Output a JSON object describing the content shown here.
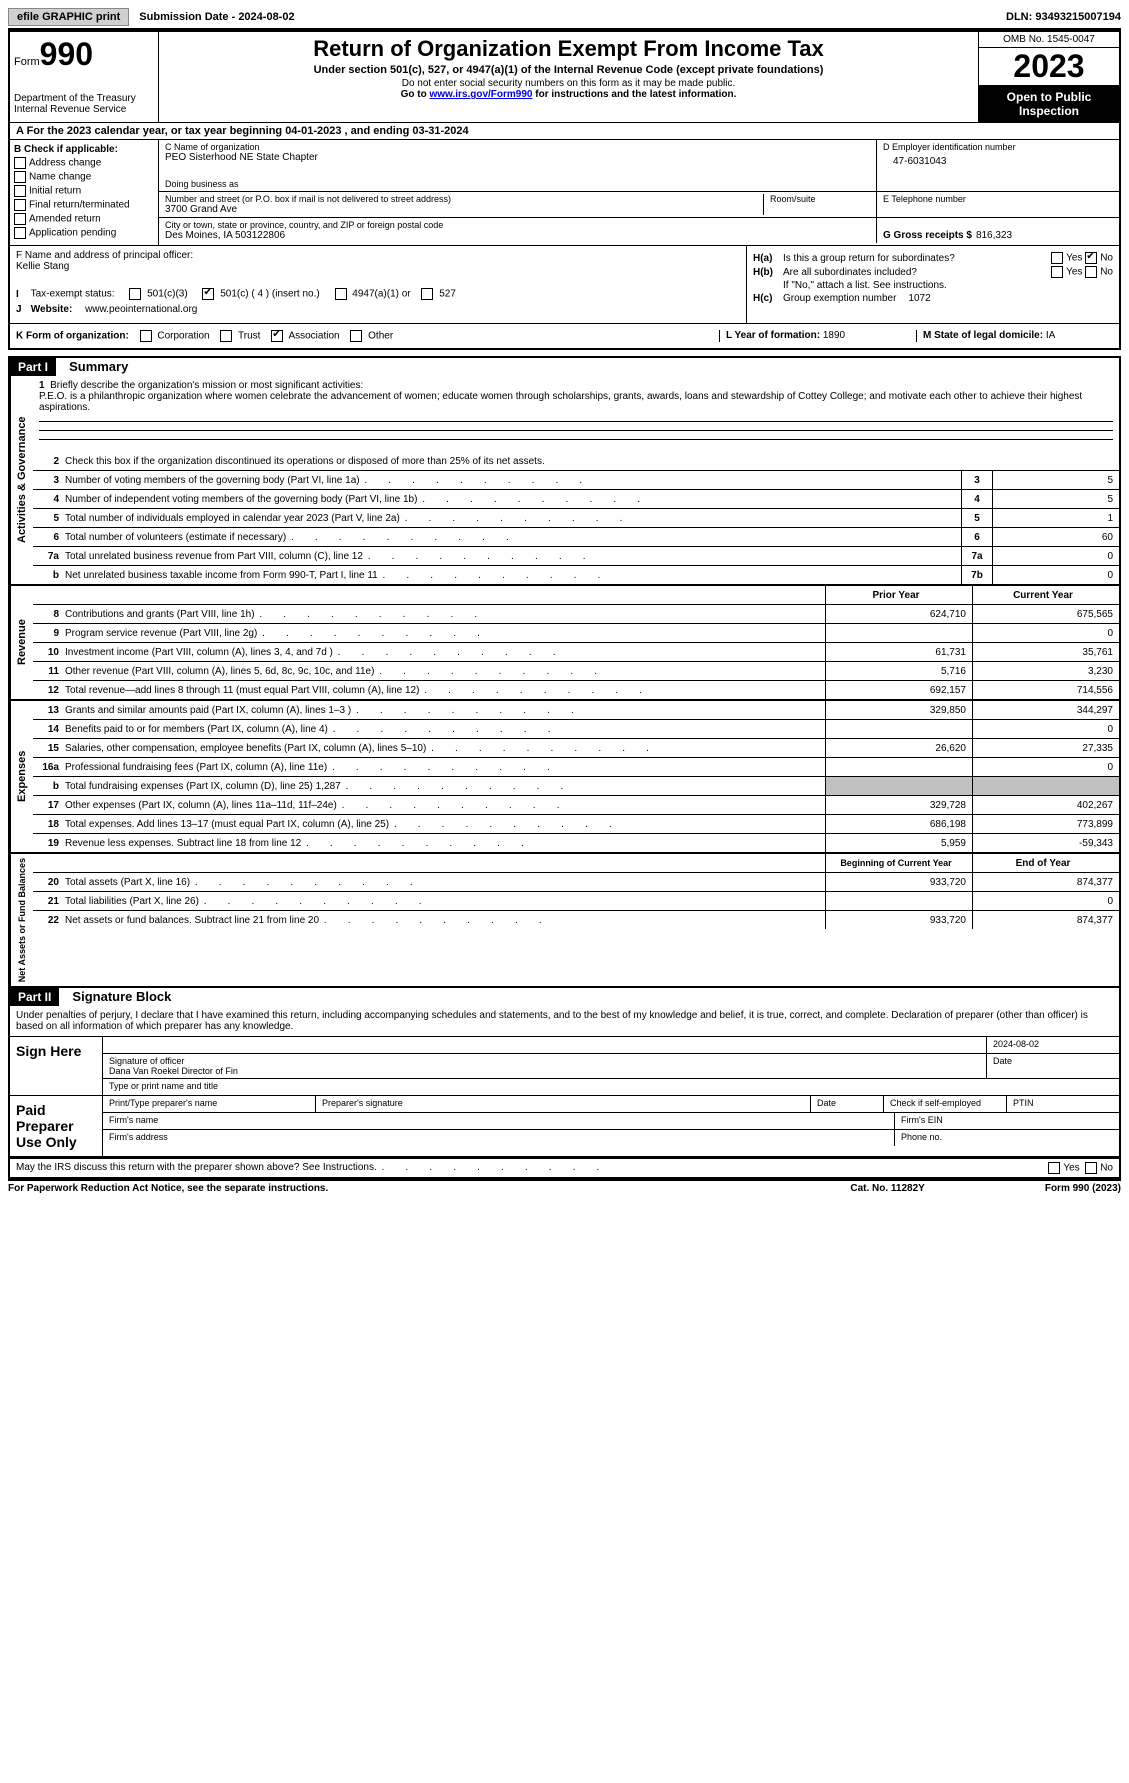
{
  "top": {
    "efile": "efile GRAPHIC print",
    "submission": "Submission Date - 2024-08-02",
    "dln": "DLN: 93493215007194"
  },
  "header": {
    "form_label": "Form",
    "form_num": "990",
    "dept": "Department of the Treasury",
    "irs": "Internal Revenue Service",
    "title": "Return of Organization Exempt From Income Tax",
    "sub1": "Under section 501(c), 527, or 4947(a)(1) of the Internal Revenue Code (except private foundations)",
    "sub2": "Do not enter social security numbers on this form as it may be made public.",
    "sub3_pre": "Go to ",
    "sub3_link": "www.irs.gov/Form990",
    "sub3_post": " for instructions and the latest information.",
    "omb": "OMB No. 1545-0047",
    "year": "2023",
    "inspection": "Open to Public Inspection"
  },
  "line_a": "A  For the 2023 calendar year, or tax year beginning 04-01-2023    , and ending 03-31-2024",
  "b": {
    "label": "B Check if applicable:",
    "opts": [
      "Address change",
      "Name change",
      "Initial return",
      "Final return/terminated",
      "Amended return",
      "Application pending"
    ]
  },
  "c": {
    "name_label": "C Name of organization",
    "name": "PEO Sisterhood NE State Chapter",
    "dba_label": "Doing business as",
    "addr_label": "Number and street (or P.O. box if mail is not delivered to street address)",
    "addr": "3700 Grand Ave",
    "room_label": "Room/suite",
    "city_label": "City or town, state or province, country, and ZIP or foreign postal code",
    "city": "Des Moines, IA  503122806"
  },
  "d": {
    "label": "D Employer identification number",
    "ein": "47-6031043"
  },
  "e": {
    "label": "E Telephone number"
  },
  "g": {
    "label": "G Gross receipts $",
    "val": "816,323"
  },
  "f": {
    "label": "F  Name and address of principal officer:",
    "name": "Kellie Stang"
  },
  "h": {
    "a": "Is this a group return for subordinates?",
    "a_no": "No",
    "b": "Are all subordinates included?",
    "b_note": "If \"No,\" attach a list. See instructions.",
    "c_label": "Group exemption number",
    "c_val": "1072"
  },
  "i": {
    "label": "Tax-exempt status:",
    "opt1": "501(c)(3)",
    "opt2": "501(c) ( 4 ) (insert no.)",
    "opt3": "4947(a)(1) or",
    "opt4": "527"
  },
  "j": {
    "label": "Website:",
    "val": "www.peointernational.org"
  },
  "k": {
    "label": "K Form of organization:",
    "opts": [
      "Corporation",
      "Trust",
      "Association",
      "Other"
    ]
  },
  "l": {
    "label": "L Year of formation:",
    "val": "1890"
  },
  "m": {
    "label": "M State of legal domicile:",
    "val": "IA"
  },
  "part1": {
    "header": "Part I",
    "title": "Summary",
    "line1_label": "Briefly describe the organization's mission or most significant activities:",
    "mission": "P.E.O. is a philanthropic organization where women celebrate the advancement of women; educate women through scholarships, grants, awards, loans and stewardship of Cottey College; and motivate each other to achieve their highest aspirations.",
    "line2": "Check this box       if the organization discontinued its operations or disposed of more than 25% of its net assets.",
    "vert_ag": "Activities & Governance",
    "vert_rev": "Revenue",
    "vert_exp": "Expenses",
    "vert_na": "Net Assets or Fund Balances",
    "rows_ag": [
      {
        "n": "3",
        "t": "Number of voting members of the governing body (Part VI, line 1a)",
        "box": "3",
        "v": "5"
      },
      {
        "n": "4",
        "t": "Number of independent voting members of the governing body (Part VI, line 1b)",
        "box": "4",
        "v": "5"
      },
      {
        "n": "5",
        "t": "Total number of individuals employed in calendar year 2023 (Part V, line 2a)",
        "box": "5",
        "v": "1"
      },
      {
        "n": "6",
        "t": "Total number of volunteers (estimate if necessary)",
        "box": "6",
        "v": "60"
      },
      {
        "n": "7a",
        "t": "Total unrelated business revenue from Part VIII, column (C), line 12",
        "box": "7a",
        "v": "0"
      },
      {
        "n": "b",
        "t": "Net unrelated business taxable income from Form 990-T, Part I, line 11",
        "box": "7b",
        "v": "0"
      }
    ],
    "col_head1": "Prior Year",
    "col_head2": "Current Year",
    "rows_rev": [
      {
        "n": "8",
        "t": "Contributions and grants (Part VIII, line 1h)",
        "c1": "624,710",
        "c2": "675,565"
      },
      {
        "n": "9",
        "t": "Program service revenue (Part VIII, line 2g)",
        "c1": "",
        "c2": "0"
      },
      {
        "n": "10",
        "t": "Investment income (Part VIII, column (A), lines 3, 4, and 7d )",
        "c1": "61,731",
        "c2": "35,761"
      },
      {
        "n": "11",
        "t": "Other revenue (Part VIII, column (A), lines 5, 6d, 8c, 9c, 10c, and 11e)",
        "c1": "5,716",
        "c2": "3,230"
      },
      {
        "n": "12",
        "t": "Total revenue—add lines 8 through 11 (must equal Part VIII, column (A), line 12)",
        "c1": "692,157",
        "c2": "714,556"
      }
    ],
    "rows_exp": [
      {
        "n": "13",
        "t": "Grants and similar amounts paid (Part IX, column (A), lines 1–3 )",
        "c1": "329,850",
        "c2": "344,297"
      },
      {
        "n": "14",
        "t": "Benefits paid to or for members (Part IX, column (A), line 4)",
        "c1": "",
        "c2": "0"
      },
      {
        "n": "15",
        "t": "Salaries, other compensation, employee benefits (Part IX, column (A), lines 5–10)",
        "c1": "26,620",
        "c2": "27,335"
      },
      {
        "n": "16a",
        "t": "Professional fundraising fees (Part IX, column (A), line 11e)",
        "c1": "",
        "c2": "0"
      },
      {
        "n": "b",
        "t": "Total fundraising expenses (Part IX, column (D), line 25) 1,287",
        "c1": "gray",
        "c2": "gray"
      },
      {
        "n": "17",
        "t": "Other expenses (Part IX, column (A), lines 11a–11d, 11f–24e)",
        "c1": "329,728",
        "c2": "402,267"
      },
      {
        "n": "18",
        "t": "Total expenses. Add lines 13–17 (must equal Part IX, column (A), line 25)",
        "c1": "686,198",
        "c2": "773,899"
      },
      {
        "n": "19",
        "t": "Revenue less expenses. Subtract line 18 from line 12",
        "c1": "5,959",
        "c2": "-59,343"
      }
    ],
    "na_head1": "Beginning of Current Year",
    "na_head2": "End of Year",
    "rows_na": [
      {
        "n": "20",
        "t": "Total assets (Part X, line 16)",
        "c1": "933,720",
        "c2": "874,377"
      },
      {
        "n": "21",
        "t": "Total liabilities (Part X, line 26)",
        "c1": "",
        "c2": "0"
      },
      {
        "n": "22",
        "t": "Net assets or fund balances. Subtract line 21 from line 20",
        "c1": "933,720",
        "c2": "874,377"
      }
    ]
  },
  "part2": {
    "header": "Part II",
    "title": "Signature Block",
    "decl": "Under penalties of perjury, I declare that I have examined this return, including accompanying schedules and statements, and to the best of my knowledge and belief, it is true, correct, and complete. Declaration of preparer (other than officer) is based on all information of which preparer has any knowledge.",
    "sign_here": "Sign Here",
    "sig_date": "2024-08-02",
    "sig_officer_label": "Signature of officer",
    "sig_name": "Dana Van Roekel  Director of Fin",
    "sig_type_label": "Type or print name and title",
    "date_label": "Date",
    "paid": "Paid Preparer Use Only",
    "p_name": "Print/Type preparer's name",
    "p_sig": "Preparer's signature",
    "p_date": "Date",
    "p_check": "Check         if self-employed",
    "p_ptin": "PTIN",
    "p_firm": "Firm's name",
    "p_ein": "Firm's EIN",
    "p_addr": "Firm's address",
    "p_phone": "Phone no."
  },
  "discuss": {
    "text": "May the IRS discuss this return with the preparer shown above? See Instructions.",
    "yes": "Yes",
    "no": "No"
  },
  "footer": {
    "left": "For Paperwork Reduction Act Notice, see the separate instructions.",
    "mid": "Cat. No. 11282Y",
    "right": "Form 990 (2023)"
  }
}
